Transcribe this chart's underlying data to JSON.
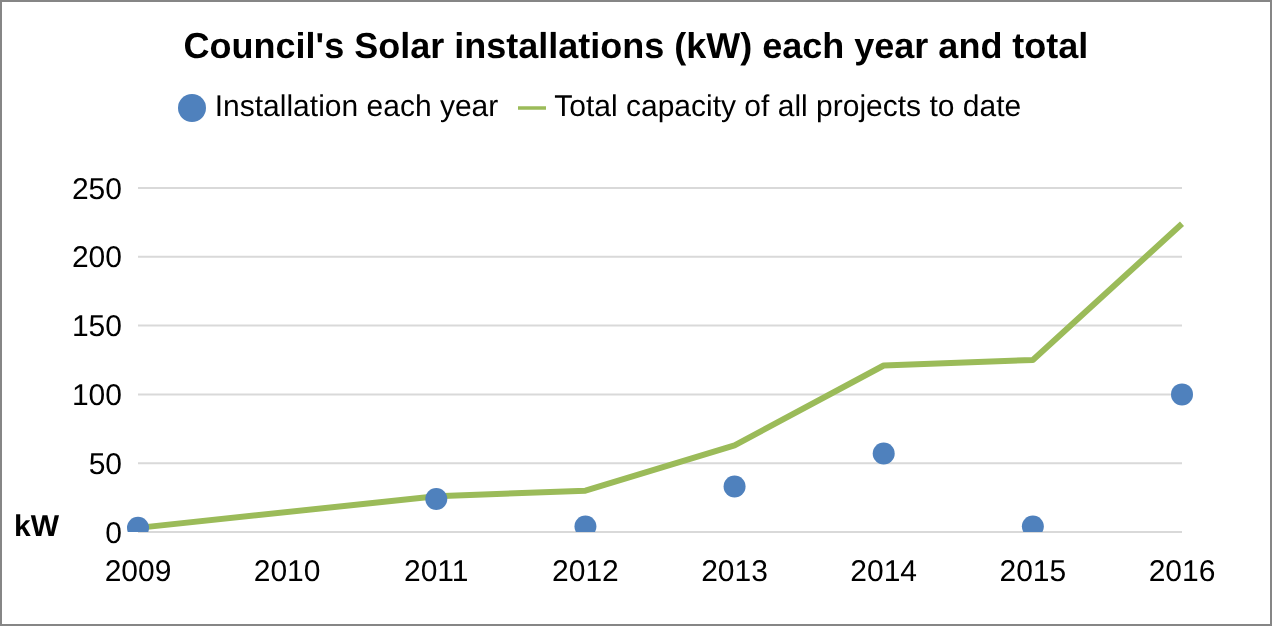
{
  "chart_data": {
    "type": "line",
    "title": "Council's Solar installations (kW) each year and total",
    "ylabel": "kW",
    "x": [
      2009,
      2011,
      2012,
      2013,
      2014,
      2015,
      2016
    ],
    "series": [
      {
        "name": "Installation each year",
        "type": "scatter",
        "marker": "circle",
        "color": "#4f81bd",
        "values": [
          3,
          24,
          4,
          33,
          57,
          4,
          100
        ]
      },
      {
        "name": "Total capacity of all projects to date",
        "marker": "none",
        "color": "#9bbb59",
        "values": [
          3,
          26,
          30,
          63,
          121,
          125,
          224
        ]
      }
    ],
    "xlim": [
      2009,
      2016
    ],
    "xticks": [
      2009,
      2010,
      2011,
      2012,
      2013,
      2014,
      2015,
      2016
    ],
    "ylim": [
      0,
      250
    ],
    "yticks": [
      0,
      50,
      100,
      150,
      200,
      250
    ],
    "grid": "y",
    "legend": "top"
  }
}
